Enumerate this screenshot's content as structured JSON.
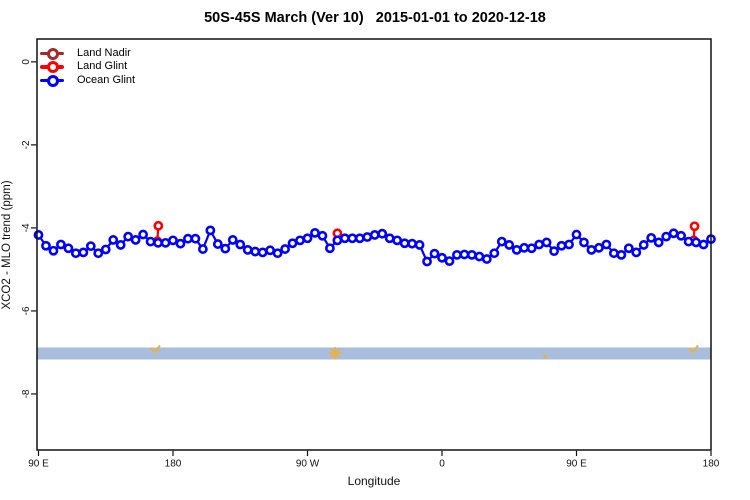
{
  "title": "50S-45S March (Ver 10)   2015-01-01 to 2020-12-18",
  "colors": {
    "land_nadir": "#A52A2A",
    "land_glint": "#FF0000",
    "ocean_glint": "#0000FF",
    "band": "#A8BEDC",
    "marks": "#F0AE3C",
    "axis": "#111111"
  },
  "legend": {
    "items": [
      {
        "label": "Land Nadir",
        "color": "#A52A2A"
      },
      {
        "label": "Land Glint",
        "color": "#FF0000"
      },
      {
        "label": "Ocean Glint",
        "color": "#0000FF"
      }
    ]
  },
  "chart_data": {
    "type": "line",
    "title": "50S-45S March (Ver 10)   2015-01-01 to 2020-12-18",
    "xlabel": "Longitude",
    "ylabel": "XCO2 - MLO trend (ppm)",
    "xlim": [
      89,
      540
    ],
    "ylim": [
      -9.35,
      0.55
    ],
    "x_ticks": [
      {
        "value": 90,
        "label": "90 E"
      },
      {
        "value": 180,
        "label": "180"
      },
      {
        "value": 270,
        "label": "90 W"
      },
      {
        "value": 360,
        "label": "0"
      },
      {
        "value": 450,
        "label": "90 E"
      },
      {
        "value": 540,
        "label": "180"
      }
    ],
    "y_ticks": [
      {
        "value": 0,
        "label": "0"
      },
      {
        "value": -2,
        "label": "-2"
      },
      {
        "value": -4,
        "label": "-4"
      },
      {
        "value": -6,
        "label": "-6"
      },
      {
        "value": -8,
        "label": "-8"
      }
    ],
    "band": {
      "from": -6.88,
      "to": -7.17,
      "color": "#A8BEDC"
    },
    "marks": {
      "color": "#F0AE3C",
      "items": [
        {
          "x": 168,
          "y": -6.93,
          "shape": "check"
        },
        {
          "x": 288.5,
          "y": -7.02,
          "shape": "star"
        },
        {
          "x": 429,
          "y": -7.1,
          "shape": "dot"
        },
        {
          "x": 528,
          "y": -6.93,
          "shape": "check"
        }
      ]
    },
    "series": [
      {
        "name": "Land Nadir",
        "color": "#A52A2A",
        "segments": []
      },
      {
        "name": "Land Glint",
        "color": "#FF0000",
        "segments": [
          [
            [
              170.2,
              -3.95
            ],
            [
              169.5,
              -4.32
            ]
          ],
          [
            [
              290,
              -4.13
            ]
          ],
          [
            [
              529,
              -3.96
            ],
            [
              528.4,
              -4.3
            ]
          ]
        ]
      },
      {
        "name": "Ocean Glint",
        "color": "#0000FF",
        "x_start": 90,
        "x_step": 5,
        "values": [
          -4.17,
          -4.43,
          -4.55,
          -4.4,
          -4.49,
          -4.61,
          -4.59,
          -4.44,
          -4.61,
          -4.52,
          -4.29,
          -4.41,
          -4.21,
          -4.29,
          -4.16,
          -4.33,
          -4.36,
          -4.36,
          -4.3,
          -4.38,
          -4.26,
          -4.26,
          -4.51,
          -4.06,
          -4.39,
          -4.5,
          -4.29,
          -4.4,
          -4.53,
          -4.57,
          -4.59,
          -4.54,
          -4.61,
          -4.51,
          -4.37,
          -4.3,
          -4.25,
          -4.12,
          -4.19,
          -4.49,
          -4.3,
          -4.25,
          -4.25,
          -4.25,
          -4.22,
          -4.17,
          -4.14,
          -4.25,
          -4.3,
          -4.37,
          -4.38,
          -4.41,
          -4.81,
          -4.62,
          -4.72,
          -4.8,
          -4.65,
          -4.64,
          -4.65,
          -4.69,
          -4.75,
          -4.61,
          -4.33,
          -4.41,
          -4.53,
          -4.48,
          -4.49,
          -4.4,
          -4.35,
          -4.56,
          -4.43,
          -4.4,
          -4.16,
          -4.35,
          -4.53,
          -4.48,
          -4.4,
          -4.61,
          -4.65,
          -4.49,
          -4.59,
          -4.41,
          -4.24,
          -4.35,
          -4.21,
          -4.13,
          -4.19,
          -4.33,
          -4.35,
          -4.4,
          -4.27
        ]
      }
    ]
  }
}
